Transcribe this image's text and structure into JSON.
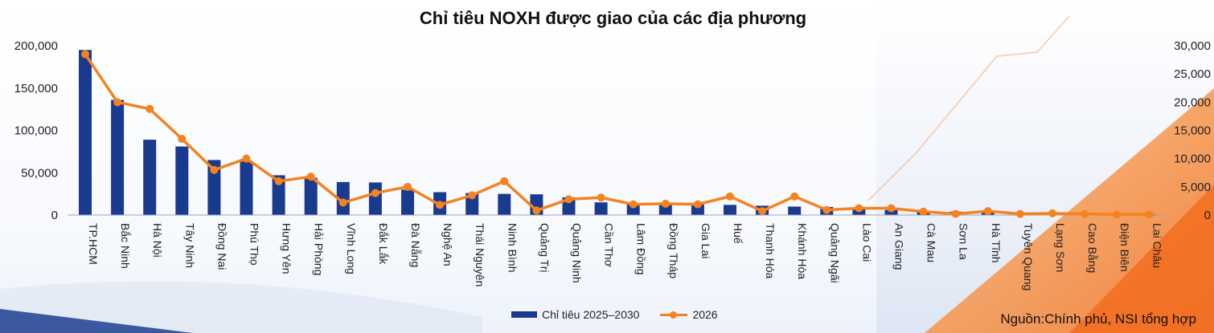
{
  "title": "Chỉ tiêu NOXH được giao của các địa phương",
  "source": "Nguồn:Chính phủ, NSI tổng hợp",
  "colors": {
    "bar": "#1a3a8f",
    "line": "#f58220"
  },
  "chart_data": {
    "type": "bar+line",
    "title": "Chỉ tiêu NOXH được giao của các địa phương",
    "legend_position": "bottom",
    "grid": false,
    "categories": [
      "TP.HCM",
      "Bắc Ninh",
      "Hà Nội",
      "Tây Ninh",
      "Đồng Nai",
      "Phú Thọ",
      "Hưng Yên",
      "Hải Phòng",
      "Vĩnh Long",
      "Đắk Lắk",
      "Đà Nẵng",
      "Nghệ An",
      "Thái Nguyên",
      "Ninh Bình",
      "Quảng Trị",
      "Quảng Ninh",
      "Cần Thơ",
      "Lâm Đồng",
      "Đồng Tháp",
      "Gia Lai",
      "Huế",
      "Thanh Hóa",
      "Khánh Hòa",
      "Quảng Ngãi",
      "Lào Cai",
      "An Giang",
      "Cà Mau",
      "Sơn La",
      "Hà Tĩnh",
      "Tuyên Quang",
      "Lạng Sơn",
      "Cao Bằng",
      "Điện Biên",
      "Lai Châu"
    ],
    "left_axis": {
      "ticks": [
        0,
        50000,
        100000,
        150000,
        200000
      ],
      "tick_labels": [
        "0",
        "50,000",
        "100,000",
        "150,000",
        "200,000"
      ],
      "range": [
        0,
        200000
      ]
    },
    "right_axis": {
      "ticks": [
        0,
        5000,
        10000,
        15000,
        20000,
        25000,
        30000
      ],
      "tick_labels": [
        "0",
        "5,000",
        "10,000",
        "15,000",
        "20,000",
        "25,000",
        "30,000"
      ],
      "range": [
        0,
        30000
      ]
    },
    "series": [
      {
        "name": "Chỉ tiêu 2025–2030",
        "type": "bar",
        "axis": "left",
        "values": [
          195000,
          136000,
          89000,
          81000,
          65000,
          64000,
          47000,
          44000,
          39000,
          38500,
          30000,
          27000,
          26000,
          25000,
          24500,
          21000,
          15000,
          14000,
          13500,
          12500,
          12000,
          11000,
          10000,
          9500,
          7000,
          6000,
          5000,
          4000,
          3000,
          2500,
          2000,
          1500,
          1000,
          800
        ]
      },
      {
        "name": "2026",
        "type": "line",
        "axis": "right",
        "values": [
          28500,
          20000,
          18800,
          13500,
          8000,
          10000,
          6000,
          6800,
          2200,
          3900,
          5000,
          1800,
          3500,
          6000,
          800,
          2800,
          3100,
          1900,
          2000,
          1900,
          3300,
          700,
          3300,
          900,
          1200,
          1200,
          600,
          200,
          700,
          200,
          300,
          200,
          100,
          100
        ]
      }
    ]
  }
}
